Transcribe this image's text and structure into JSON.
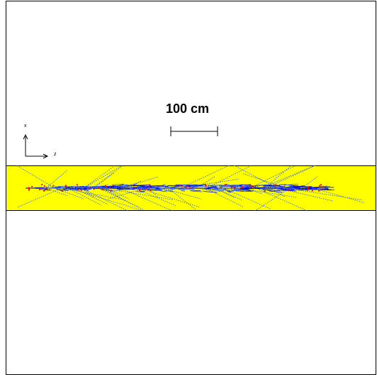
{
  "scale": {
    "label": "100 cm"
  },
  "axes": {
    "vertical_label": "x",
    "horizontal_label": "z"
  },
  "colors": {
    "band_fill": "#ffff00",
    "track_primary": "#0000cc",
    "track_secondary": "#2255ff",
    "hits": "#ff0000",
    "frame": "#000000"
  }
}
